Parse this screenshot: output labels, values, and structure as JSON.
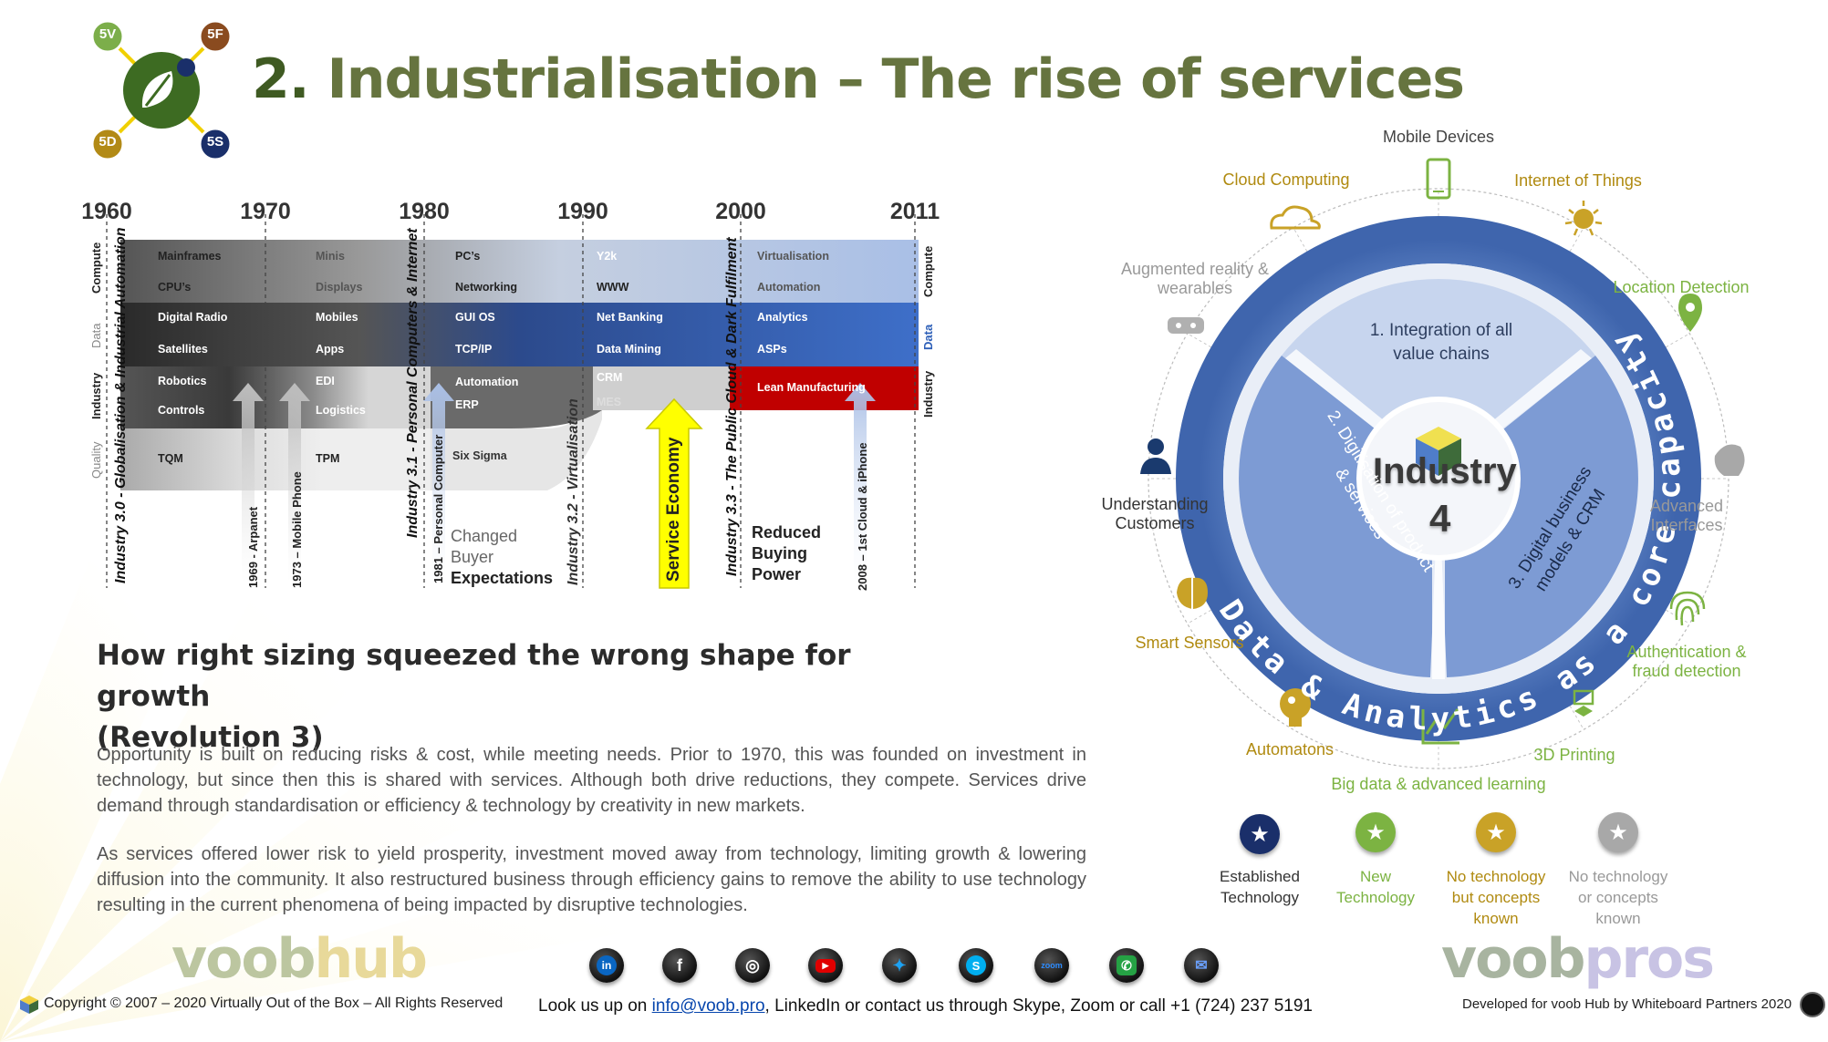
{
  "title": {
    "number": "2.",
    "text": "Industrialisation – The rise of services"
  },
  "logo": {
    "badges": [
      "5V",
      "5F",
      "5D",
      "5S"
    ]
  },
  "timeline": {
    "years": [
      "1960",
      "1970",
      "1980",
      "1990",
      "2000",
      "2011"
    ],
    "row_labels": [
      "Compute",
      "Data",
      "Industry",
      "Quality"
    ],
    "row_labels_right": [
      "Compute",
      "Data",
      "Industry"
    ],
    "col1960": [
      "Mainframes",
      "CPU’s",
      "Digital Radio",
      "Satellites",
      "Robotics",
      "Controls",
      "TQM"
    ],
    "col1970": [
      "Minis",
      "Displays",
      "Mobiles",
      "Apps",
      "EDI",
      "Logistics",
      "TPM"
    ],
    "col1980": [
      "PC’s",
      "Networking",
      "GUI OS",
      "TCP/IP",
      "Automation",
      "ERP",
      "Six Sigma"
    ],
    "col1990": [
      "Y2k",
      "WWW",
      "Net Banking",
      "Data Mining",
      "CRM",
      "MES"
    ],
    "col2000": [
      "Virtualisation",
      "Automation",
      "Analytics",
      "ASPs",
      "Lean Manufacturing"
    ],
    "eras": [
      "Industry 3.0 - Globalisation & Industrial Automation",
      "Industry 3.1 - Personal Computers & Internet",
      "Industry 3.2 - Virtualisation",
      "Industry 3.3 - The Public Cloud & Dark Fulfilment"
    ],
    "events": [
      "1969 - Arpanet",
      "1973 – Mobile Phone",
      "1981 – Personal Computer",
      "2008 – 1st Cloud & iPhone"
    ],
    "service_economy": "Service Economy",
    "changed": [
      "Changed",
      "Buyer",
      "Expectations"
    ],
    "reduced": [
      "Reduced",
      "Buying",
      "Power"
    ]
  },
  "subhead": [
    "How right sizing squeezed the wrong shape for growth",
    "(Revolution 3)"
  ],
  "paragraphs": [
    "Opportunity is built on reducing risks & cost, while meeting needs. Prior to 1970, this was founded on investment in technology, but since then this is shared with services. Although both drive reductions, they compete. Services drive demand through standardisation or efficiency & technology by creativity in new markets.",
    "As services offered lower risk to yield prosperity, investment moved away from technology, limiting growth & lowering diffusion into the community. It also restructured business through efficiency gains to remove the ability to use technology resulting in the current phenomena of being impacted by disruptive technologies."
  ],
  "wheel": {
    "center": [
      "Industry",
      "4"
    ],
    "segments": [
      "1. Integration of all value chains",
      "2. Digitisation of product & services",
      "3. Digital business models & CRM"
    ],
    "ring_text": "Data & Analytics as a core capacity",
    "items": [
      {
        "label": [
          "Mobile Devices"
        ],
        "icon": "mobile-device-icon",
        "color": "#7cb342"
      },
      {
        "label": [
          "Internet of Things"
        ],
        "icon": "iot-icon",
        "color": "#c9a227"
      },
      {
        "label": [
          "Location Detection"
        ],
        "icon": "location-pin-icon",
        "color": "#7cb342"
      },
      {
        "label": [
          "Advanced",
          "Interfaces"
        ],
        "icon": "hand-interface-icon",
        "color": "#9e9e9e"
      },
      {
        "label": [
          "Authentication &",
          "fraud detection"
        ],
        "icon": "fingerprint-icon",
        "color": "#7cb342"
      },
      {
        "label": [
          "3D Printing"
        ],
        "icon": "printer-3d-icon",
        "color": "#7cb342"
      },
      {
        "label": [
          "Big data & advanced learning"
        ],
        "icon": "chart-icon",
        "color": "#7cb342"
      },
      {
        "label": [
          "Automatons"
        ],
        "icon": "robot-head-icon",
        "color": "#c9a227"
      },
      {
        "label": [
          "Smart Sensors"
        ],
        "icon": "brain-sensor-icon",
        "color": "#c9a227"
      },
      {
        "label": [
          "Understanding",
          "Customers"
        ],
        "icon": "person-icon",
        "color": "#1a3a6e"
      },
      {
        "label": [
          "Augmented reality &",
          "wearables"
        ],
        "icon": "vr-headset-icon",
        "color": "#9e9e9e"
      },
      {
        "label": [
          "Cloud Computing"
        ],
        "icon": "cloud-icon",
        "color": "#c9a227"
      }
    ],
    "legend": [
      {
        "label": [
          "Established",
          "Technology"
        ],
        "color": "#1a2f6a",
        "text_color": "#333"
      },
      {
        "label": [
          "New",
          "Technology"
        ],
        "color": "#7cb342",
        "text_color": "#7cb342"
      },
      {
        "label": [
          "No technology",
          "but concepts",
          "known"
        ],
        "color": "#c9a227",
        "text_color": "#b08a10"
      },
      {
        "label": [
          "No technology",
          "or concepts",
          "known"
        ],
        "color": "#a8a8a8",
        "text_color": "#999"
      }
    ]
  },
  "footer": {
    "copyright": "Copyright © 2007 – 2020 Virtually Out of the Box – All Rights Reserved",
    "contact_prefix": "Look us up on ",
    "email": "info@voob.pro",
    "contact_suffix": ", LinkedIn or contact us through Skype, Zoom or call +1 (724) 237 5191",
    "developed": "Developed for voob Hub by Whiteboard Partners 2020",
    "logo_left": {
      "a": "voob",
      "b": "hub"
    },
    "logo_right": {
      "a": "voob",
      "b": "pros"
    },
    "socials": [
      {
        "name": "linkedin",
        "glyph": "in",
        "color": "#0a66c2"
      },
      {
        "name": "facebook",
        "glyph": "f",
        "color": "#222"
      },
      {
        "name": "instagram",
        "glyph": "◎",
        "color": "#222"
      },
      {
        "name": "youtube",
        "glyph": "▶",
        "color": "#e00000"
      },
      {
        "name": "twitter",
        "glyph": "✦",
        "color": "#1da1f2"
      },
      {
        "name": "skype",
        "glyph": "S",
        "color": "#00aff0"
      },
      {
        "name": "zoom",
        "glyph": "zoom",
        "color": "#2d8cff"
      },
      {
        "name": "phone",
        "glyph": "✆",
        "color": "#25a244"
      },
      {
        "name": "email",
        "glyph": "✉",
        "color": "#2d6ee0"
      }
    ]
  }
}
